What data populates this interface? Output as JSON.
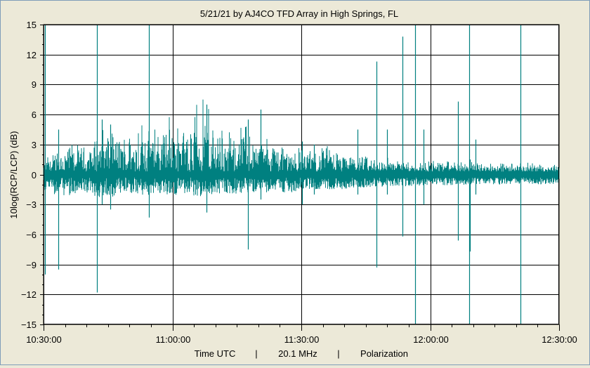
{
  "chart_data": {
    "type": "line",
    "title": "5/21/21  by  AJ4CO TFD Array  in  High Springs, FL",
    "ylabel": "10log(RCP/LCP) (dB)",
    "xlabel_parts": [
      "Time UTC",
      "|",
      "20.1 MHz",
      "|",
      "Polarization"
    ],
    "ylim": [
      -15,
      15
    ],
    "y_ticks": [
      15,
      12,
      9,
      6,
      3,
      0,
      -3,
      -6,
      -9,
      -12,
      -15
    ],
    "y_tick_labels": [
      "15",
      "12",
      "9",
      "6",
      "3",
      "0",
      "−3",
      "−6",
      "−9",
      "−12",
      "−15"
    ],
    "x_range_minutes": [
      630,
      750
    ],
    "x_ticks": [
      {
        "label": "10:30:00",
        "minutes": 630
      },
      {
        "label": "11:00:00",
        "minutes": 660
      },
      {
        "label": "11:30:00",
        "minutes": 690
      },
      {
        "label": "12:00:00",
        "minutes": 720
      },
      {
        "label": "12:30:00",
        "minutes": 750
      }
    ],
    "grid": true,
    "line_color": "#008080",
    "series": [
      {
        "name": "",
        "envelope": [
          {
            "t": 630,
            "max": 1.5,
            "min": -1.8
          },
          {
            "t": 633,
            "max": 3.0,
            "min": -2.0
          },
          {
            "t": 636,
            "max": 3.5,
            "min": -2.2
          },
          {
            "t": 640,
            "max": 3.0,
            "min": -2.0
          },
          {
            "t": 644,
            "max": 5.0,
            "min": -2.5
          },
          {
            "t": 648,
            "max": 4.0,
            "min": -2.0
          },
          {
            "t": 652,
            "max": 6.0,
            "min": -2.2
          },
          {
            "t": 655,
            "max": 5.5,
            "min": -2.0
          },
          {
            "t": 658,
            "max": 6.0,
            "min": -2.0
          },
          {
            "t": 660,
            "max": 7.0,
            "min": -2.2
          },
          {
            "t": 662,
            "max": 6.0,
            "min": -2.0
          },
          {
            "t": 664,
            "max": 5.5,
            "min": -2.0
          },
          {
            "t": 666,
            "max": 8.0,
            "min": -2.3
          },
          {
            "t": 667.5,
            "max": 8.3,
            "min": -2.0
          },
          {
            "t": 670,
            "max": 6.0,
            "min": -2.0
          },
          {
            "t": 672,
            "max": 5.0,
            "min": -2.0
          },
          {
            "t": 675,
            "max": 4.5,
            "min": -2.0
          },
          {
            "t": 677,
            "max": 6.5,
            "min": -1.8
          },
          {
            "t": 680,
            "max": 4.0,
            "min": -1.8
          },
          {
            "t": 682,
            "max": 4.5,
            "min": -1.8
          },
          {
            "t": 685,
            "max": 4.0,
            "min": -1.8
          },
          {
            "t": 688,
            "max": 3.0,
            "min": -1.8
          },
          {
            "t": 690,
            "max": 3.0,
            "min": -1.5
          },
          {
            "t": 693,
            "max": 3.0,
            "min": -1.5
          },
          {
            "t": 697,
            "max": 3.0,
            "min": -1.5
          },
          {
            "t": 700,
            "max": 2.5,
            "min": -1.5
          },
          {
            "t": 705,
            "max": 2.0,
            "min": -1.3
          },
          {
            "t": 710,
            "max": 1.8,
            "min": -1.2
          },
          {
            "t": 715,
            "max": 1.5,
            "min": -1.2
          },
          {
            "t": 720,
            "max": 1.5,
            "min": -1.1
          },
          {
            "t": 730,
            "max": 1.3,
            "min": -1.0
          },
          {
            "t": 740,
            "max": 1.2,
            "min": -1.0
          },
          {
            "t": 750,
            "max": 1.2,
            "min": -1.0
          }
        ],
        "spikes": [
          {
            "t": 630.3,
            "min": -10,
            "max": 15
          },
          {
            "t": 633.5,
            "min": -9.5,
            "max": 4.5
          },
          {
            "t": 642.4,
            "min": -11.8,
            "max": 15
          },
          {
            "t": 643.5,
            "min": -3,
            "max": 5.5
          },
          {
            "t": 645.6,
            "min": -3.5,
            "max": 5
          },
          {
            "t": 654.5,
            "min": -4.3,
            "max": 15
          },
          {
            "t": 668,
            "min": -3.8,
            "max": 7
          },
          {
            "t": 677.5,
            "min": -7.5,
            "max": 5.5
          },
          {
            "t": 680.5,
            "min": -2.5,
            "max": 6.5
          },
          {
            "t": 690.2,
            "min": -3,
            "max": 3.3
          },
          {
            "t": 693,
            "min": -2,
            "max": 3
          },
          {
            "t": 703,
            "min": -2,
            "max": 4.5
          },
          {
            "t": 707.5,
            "min": -9.3,
            "max": 11.3
          },
          {
            "t": 710,
            "min": -2,
            "max": 4.5
          },
          {
            "t": 713.5,
            "min": -6.2,
            "max": 13.8
          },
          {
            "t": 716.5,
            "min": -15,
            "max": 15
          },
          {
            "t": 718.5,
            "min": -3,
            "max": 4.5
          },
          {
            "t": 726.5,
            "min": -6.6,
            "max": 7.3
          },
          {
            "t": 729,
            "min": -15,
            "max": 15
          },
          {
            "t": 729.3,
            "min": -7.7,
            "max": 1.5
          },
          {
            "t": 730.5,
            "min": -2,
            "max": 3.5
          },
          {
            "t": 741,
            "min": -15,
            "max": 15
          }
        ]
      }
    ]
  }
}
